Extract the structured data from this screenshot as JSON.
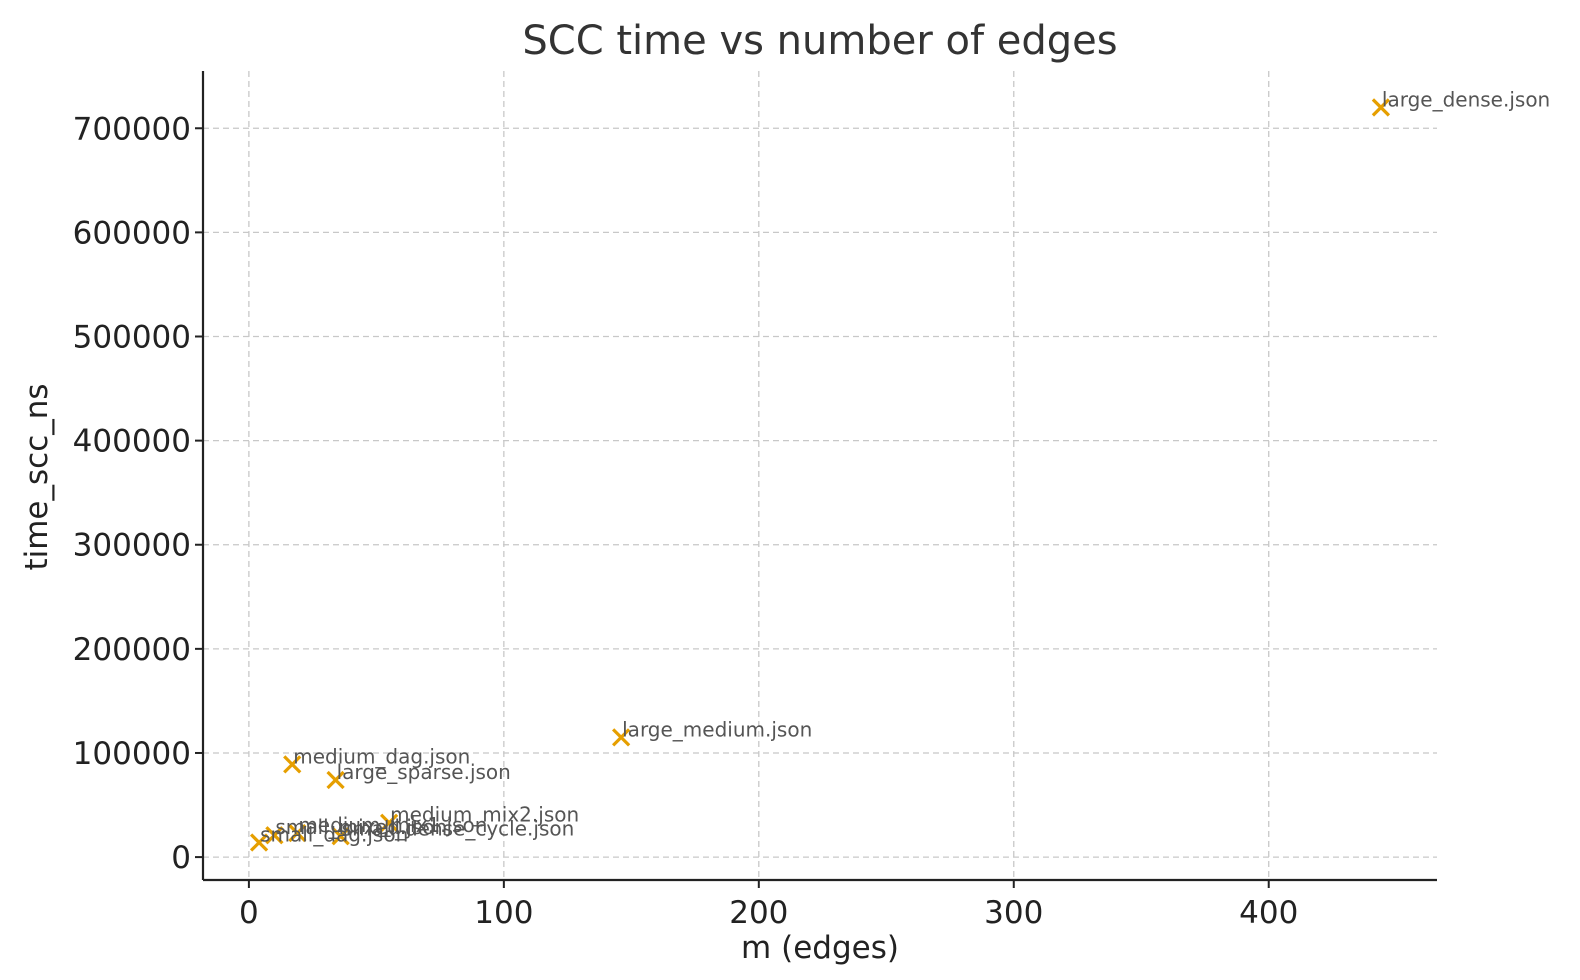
{
  "chart_data": {
    "type": "scatter",
    "title": "SCC time vs number of edges",
    "xlabel": "m (edges)",
    "ylabel": "time_scc_ns",
    "xlim": [
      -18,
      466
    ],
    "ylim": [
      -22000,
      755000
    ],
    "xticks": [
      0,
      100,
      200,
      300,
      400
    ],
    "yticks": [
      0,
      100000,
      200000,
      300000,
      400000,
      500000,
      600000,
      700000
    ],
    "grid": true,
    "marker": "x",
    "marker_color": "#E69F00",
    "series": [
      {
        "points": [
          {
            "label": "large_dense.json",
            "x": 444,
            "y": 720000
          },
          {
            "label": "large_medium.json",
            "x": 146,
            "y": 115000
          },
          {
            "label": "medium_dag.json",
            "x": 17,
            "y": 89000
          },
          {
            "label": "large_sparse.json",
            "x": 34,
            "y": 74000
          },
          {
            "label": "medium_mix2.json",
            "x": 55,
            "y": 33000
          },
          {
            "label": "medium_mix1.json",
            "x": 19,
            "y": 23000
          },
          {
            "label": "small_dense_cycle.json",
            "x": 36,
            "y": 20000
          },
          {
            "label": "small_mixed.json",
            "x": 10,
            "y": 21000
          },
          {
            "label": "small_dag.json",
            "x": 4,
            "y": 14000
          }
        ]
      }
    ]
  }
}
